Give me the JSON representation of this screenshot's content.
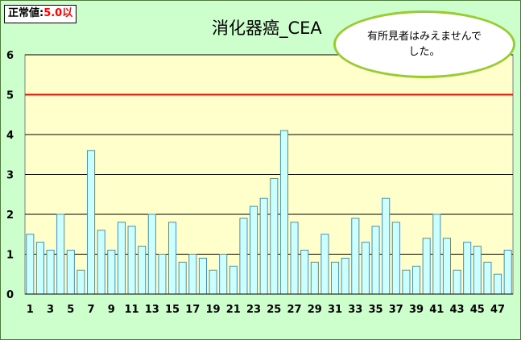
{
  "legend": {
    "label": "正常値:",
    "value": "5.0以"
  },
  "callout": {
    "text": "有所見者はみえませんでした。"
  },
  "colors": {
    "background": "#ccffcc",
    "plot": "#ffffcc",
    "bar_fill": "#ccffff",
    "bar_stroke": "#4a8fb0",
    "threshold": "#ff0000",
    "callout_border": "#99cc33"
  },
  "chart_data": {
    "type": "bar",
    "title": "消化器癌_CEA",
    "xlabel": "",
    "ylabel": "",
    "ylim": [
      0,
      6
    ],
    "yticks": [
      0,
      1,
      2,
      3,
      4,
      5,
      6
    ],
    "grid": true,
    "threshold": 5,
    "categories": [
      "1",
      "2",
      "3",
      "4",
      "5",
      "6",
      "7",
      "8",
      "9",
      "10",
      "11",
      "12",
      "13",
      "14",
      "15",
      "16",
      "17",
      "18",
      "19",
      "20",
      "21",
      "22",
      "23",
      "24",
      "25",
      "26",
      "27",
      "28",
      "29",
      "30",
      "31",
      "32",
      "33",
      "34",
      "35",
      "36",
      "37",
      "38",
      "39",
      "40",
      "41",
      "42",
      "43",
      "44",
      "45",
      "46",
      "47",
      "48"
    ],
    "xtick_labels": [
      "1",
      "3",
      "5",
      "7",
      "9",
      "11",
      "13",
      "15",
      "17",
      "19",
      "21",
      "23",
      "25",
      "27",
      "29",
      "31",
      "33",
      "35",
      "37",
      "39",
      "41",
      "43",
      "45",
      "47"
    ],
    "values": [
      1.5,
      1.3,
      1.1,
      2.0,
      1.1,
      0.6,
      3.6,
      1.6,
      1.1,
      1.8,
      1.7,
      1.2,
      2.0,
      1.0,
      1.8,
      0.8,
      1.0,
      0.9,
      0.6,
      1.0,
      0.7,
      1.9,
      2.2,
      2.4,
      2.9,
      4.1,
      1.8,
      1.1,
      0.8,
      1.5,
      0.8,
      0.9,
      1.9,
      1.3,
      1.7,
      2.4,
      1.8,
      0.6,
      0.7,
      1.4,
      2.0,
      1.4,
      0.6,
      1.3,
      1.2,
      0.8,
      0.5,
      1.1
    ]
  }
}
